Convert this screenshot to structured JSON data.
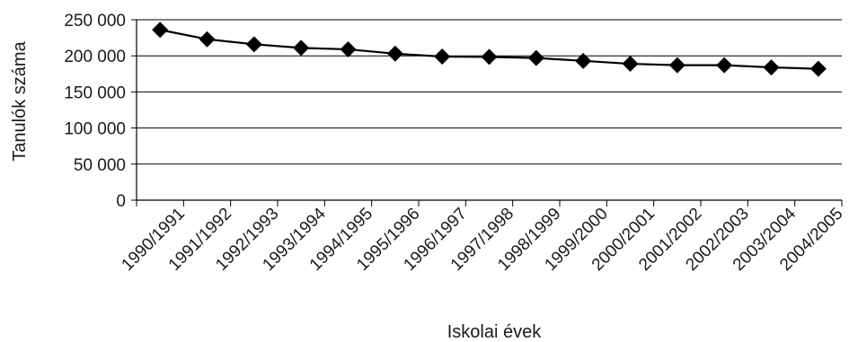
{
  "chart_data": {
    "type": "line",
    "title": "",
    "xlabel": "Iskolai évek",
    "ylabel": "Tanulók száma",
    "categories": [
      "1990/1991",
      "1991/1992",
      "1992/1993",
      "1993/1994",
      "1994/1995",
      "1995/1996",
      "1996/1997",
      "1997/1998",
      "1998/1999",
      "1999/2000",
      "2000/2001",
      "2001/2002",
      "2002/2003",
      "2003/2004",
      "2004/2005"
    ],
    "y_ticks": [
      0,
      50000,
      100000,
      150000,
      200000,
      250000
    ],
    "y_tick_labels": [
      "0",
      "50 000",
      "100 000",
      "150 000",
      "200 000",
      "250 000"
    ],
    "ylim": [
      0,
      250000
    ],
    "grid": true,
    "legend": "none",
    "marker": "diamond",
    "colors": {
      "line": "#000000",
      "grid": "#000000"
    },
    "series": [
      {
        "values": [
          236000,
          223000,
          216000,
          211000,
          209000,
          203000,
          199000,
          198500,
          197000,
          193000,
          189000,
          187000,
          187000,
          184000,
          182000
        ]
      }
    ]
  }
}
